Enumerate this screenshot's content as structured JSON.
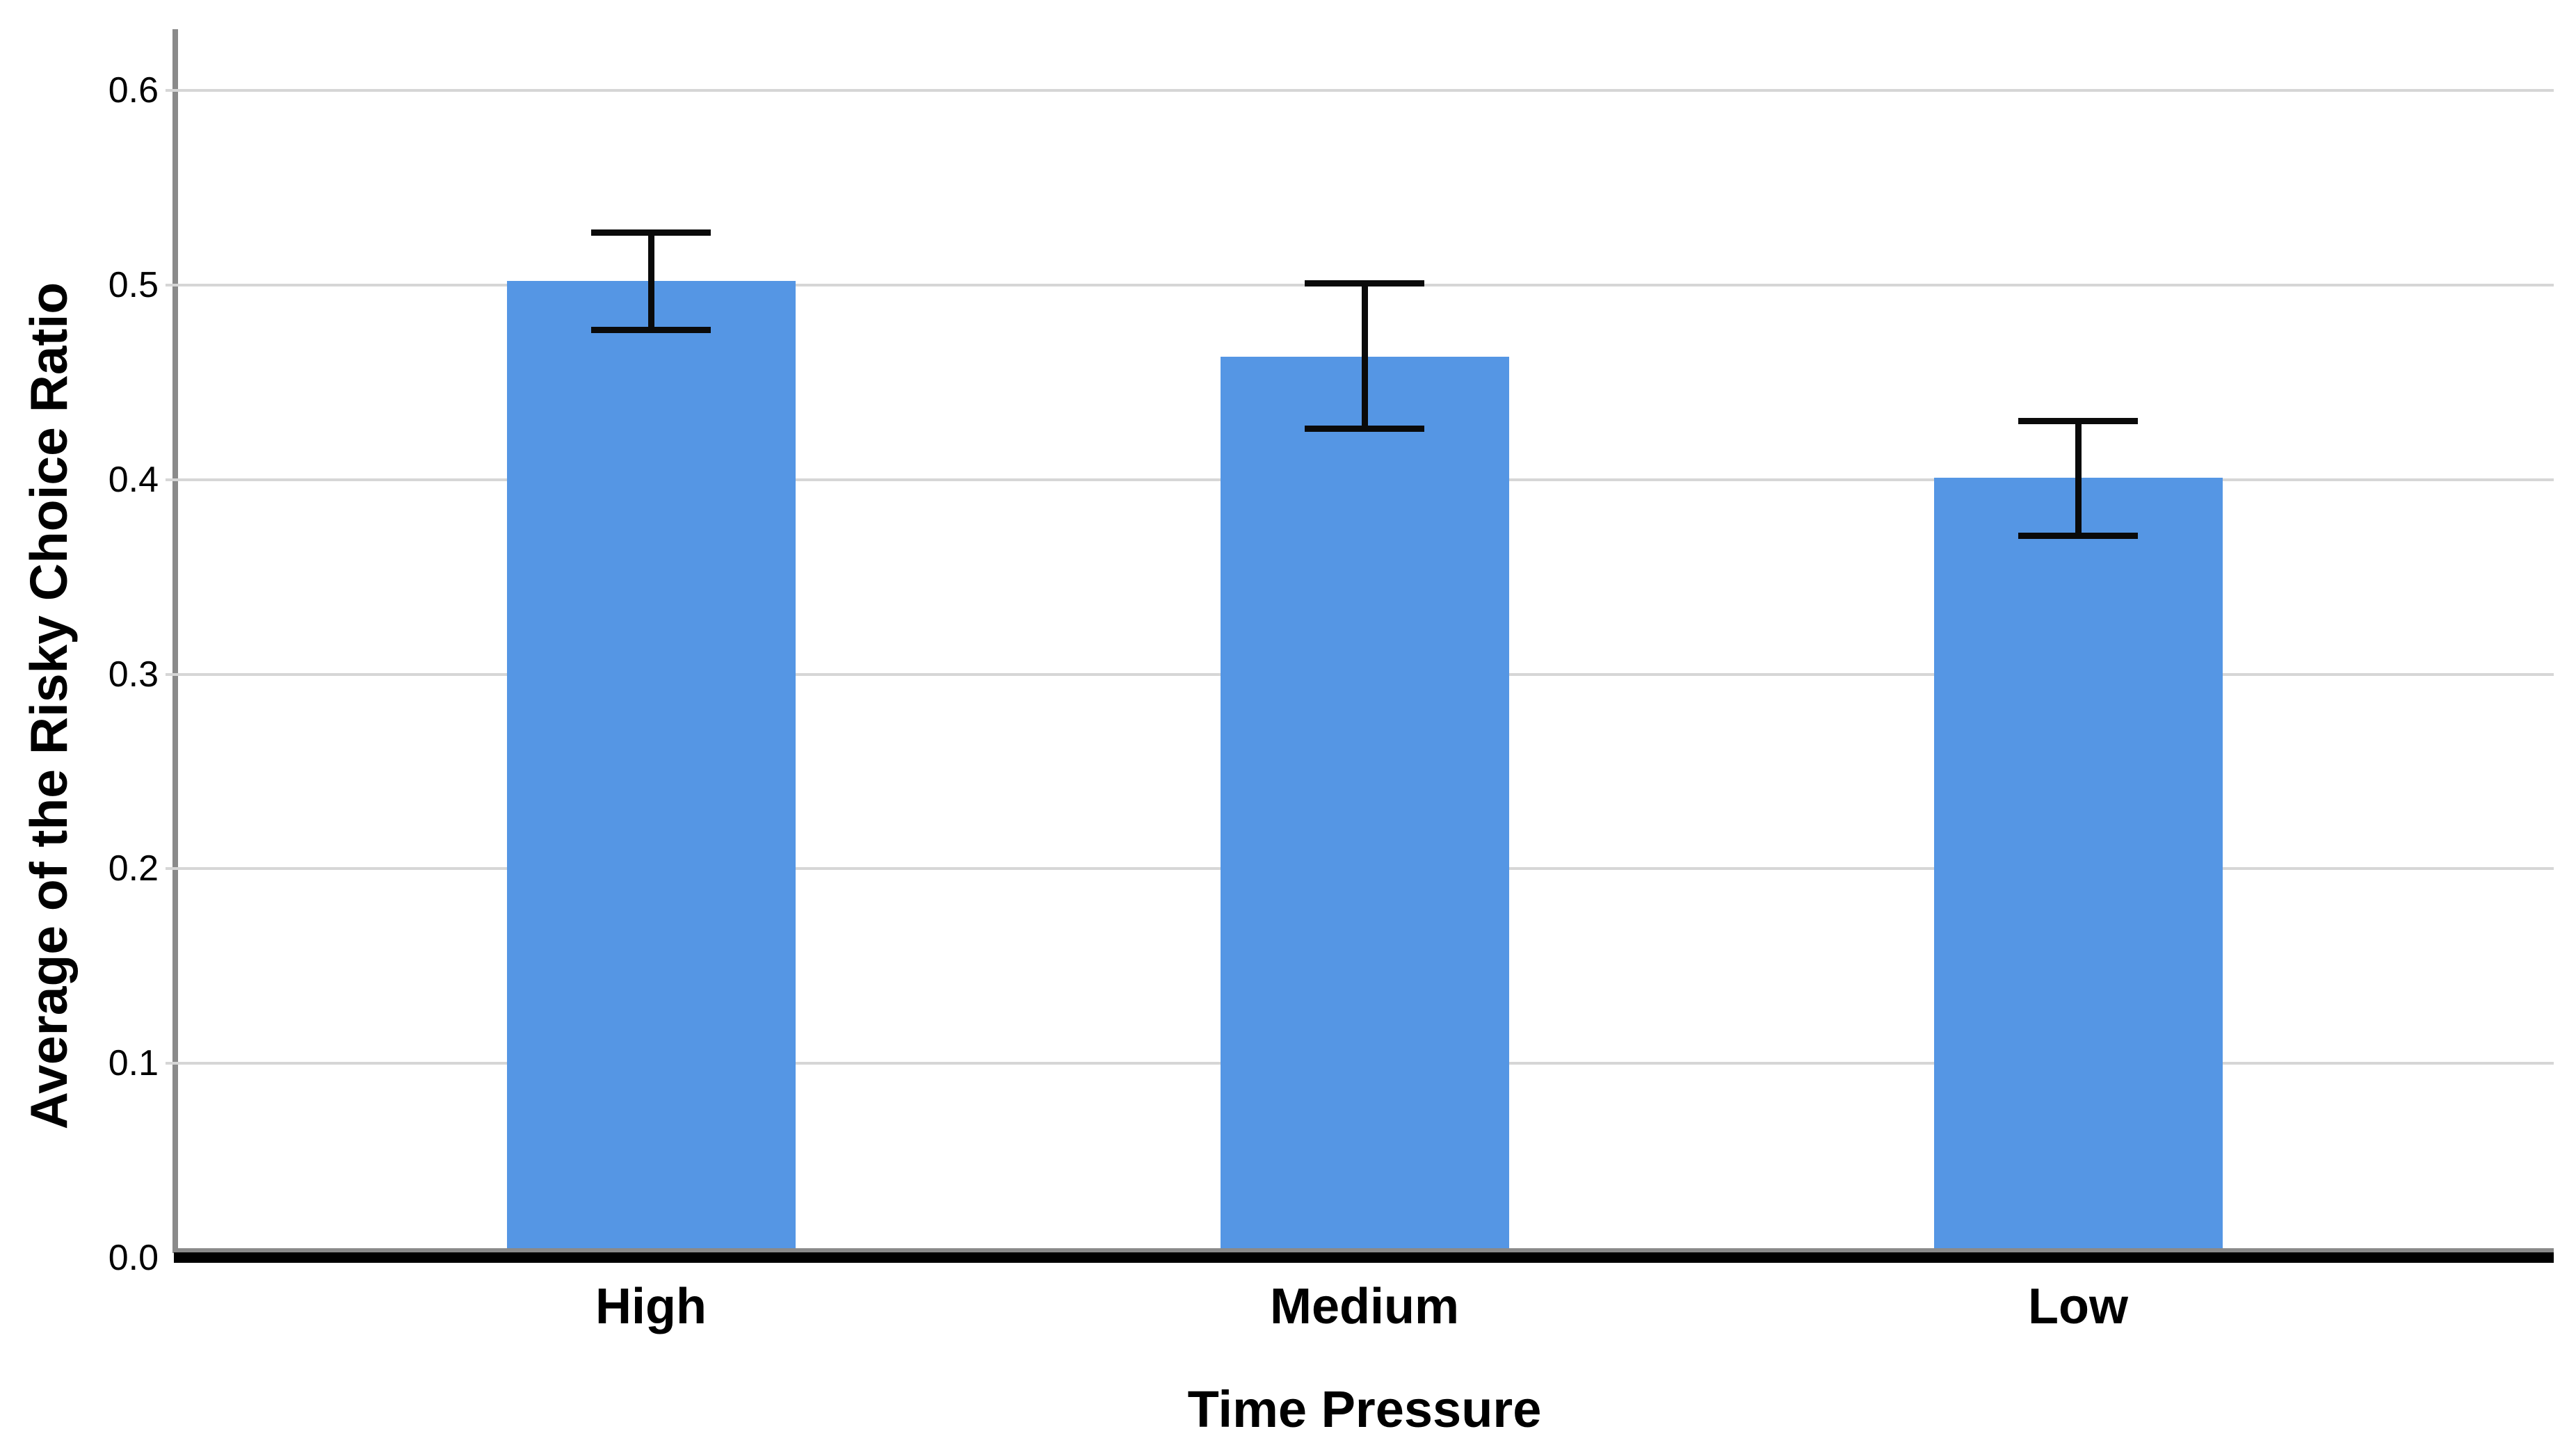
{
  "chart_data": {
    "type": "bar",
    "title": "",
    "xlabel": "Time Pressure",
    "ylabel": "Average of the Risky Choice Ratio",
    "categories": [
      "High",
      "Medium",
      "Low"
    ],
    "values": [
      0.502,
      0.463,
      0.401
    ],
    "error_bars": {
      "ci_low": [
        0.477,
        0.426,
        0.371
      ],
      "ci_high": [
        0.527,
        0.501,
        0.43
      ]
    },
    "yticks": [
      0.0,
      0.1,
      0.2,
      0.3,
      0.4,
      0.5,
      0.6
    ],
    "ytick_labels": [
      "0.0",
      "0.1",
      "0.2",
      "0.3",
      "0.4",
      "0.5",
      "0.6"
    ],
    "ylim": [
      0,
      0.6
    ],
    "grid": "horizontal",
    "legend": "none",
    "colors": {
      "bar_fill": "#5596e4",
      "error_bar": "#0a0a0a",
      "gridline": "#d6d6d6",
      "y_axis_line": "#8a8a8a",
      "x_axis_line": "#000000",
      "x_axis_top_edge": "#8a8a8a",
      "text": "#000000",
      "background": "#ffffff"
    }
  }
}
